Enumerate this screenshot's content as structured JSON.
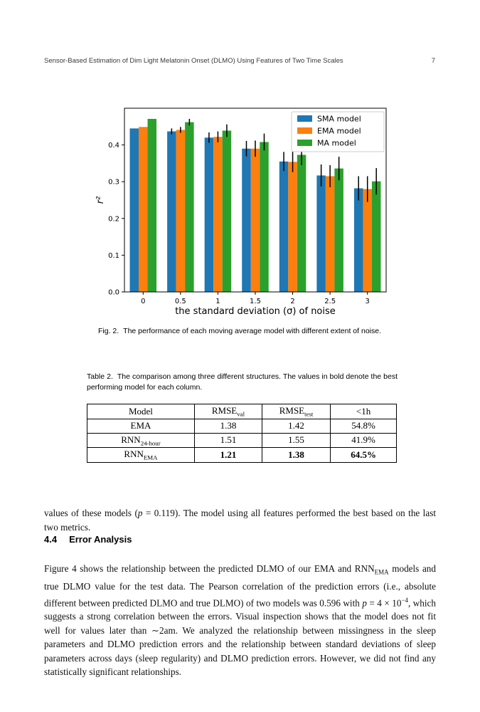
{
  "page": {
    "header_title": "Sensor-Based Estimation of Dim Light Melatonin Onset (DLMO) Using Features of Two Time Scales",
    "page_number": "7"
  },
  "chart_data": {
    "type": "bar",
    "title": "",
    "xlabel": "the standard deviation (σ) of noise",
    "ylabel": "r²",
    "categories": [
      "0",
      "0.5",
      "1",
      "1.5",
      "2",
      "2.5",
      "3"
    ],
    "series": [
      {
        "name": "SMA model",
        "color": "#1f77b4",
        "values": [
          0.445,
          0.437,
          0.42,
          0.39,
          0.355,
          0.317,
          0.282
        ],
        "errors": [
          0,
          0.008,
          0.014,
          0.021,
          0.026,
          0.03,
          0.033
        ]
      },
      {
        "name": "EMA model",
        "color": "#ff7f0e",
        "values": [
          0.449,
          0.441,
          0.422,
          0.39,
          0.354,
          0.315,
          0.28
        ],
        "errors": [
          0,
          0.008,
          0.015,
          0.022,
          0.028,
          0.03,
          0.035
        ]
      },
      {
        "name": "MA model",
        "color": "#2ca02c",
        "values": [
          0.471,
          0.462,
          0.439,
          0.408,
          0.373,
          0.336,
          0.301
        ],
        "errors": [
          0,
          0.009,
          0.017,
          0.023,
          0.028,
          0.032,
          0.036
        ]
      }
    ],
    "ylim": [
      0,
      0.5
    ],
    "yticks": [
      0.0,
      0.1,
      0.2,
      0.3,
      0.4
    ],
    "legend_position": "upper right",
    "grid": false,
    "error_bar_color": "#000000"
  },
  "figure": {
    "caption_label": "Fig. 2.",
    "caption_text": "The performance of each moving average model with different extent of noise."
  },
  "table": {
    "caption_label": "Table 2.",
    "caption_text": "The comparison among three different structures. The values in bold denote the best performing model for each column.",
    "headers": [
      {
        "main": "Model"
      },
      {
        "main": "RMSE",
        "sub": "val"
      },
      {
        "main": "RMSE",
        "sub": "test"
      },
      {
        "main": "<1h"
      }
    ],
    "rows": [
      {
        "cells": [
          {
            "main": "EMA"
          },
          {
            "main": "1.38"
          },
          {
            "main": "1.42"
          },
          {
            "main": "54.8%"
          }
        ]
      },
      {
        "cells": [
          {
            "main": "RNN",
            "sub": "24-hour"
          },
          {
            "main": "1.51"
          },
          {
            "main": "1.55"
          },
          {
            "main": "41.9%"
          }
        ]
      },
      {
        "cells": [
          {
            "main": "RNN",
            "sub": "EMA"
          },
          {
            "main": "1.21"
          },
          {
            "main": "1.38"
          },
          {
            "main": "64.5%"
          }
        ]
      }
    ]
  },
  "body": {
    "p1": [
      {
        "t": "values of these models ("
      },
      {
        "t": "p",
        "style": "i"
      },
      {
        "t": " = 0.119). The model using all features performed the best based on the last two metrics."
      }
    ],
    "heading": {
      "number": "4.4",
      "title": "Error Analysis"
    },
    "p2": [
      {
        "t": "Figure 4 shows the relationship between the predicted DLMO of our EMA and RNN"
      },
      {
        "t": "EMA",
        "style": "sub"
      },
      {
        "t": " models and true DLMO value for the test data. The Pearson correlation of the prediction errors (i.e., absolute different between predicted DLMO and true DLMO) of two models was 0.596 with "
      },
      {
        "t": "p",
        "style": "i"
      },
      {
        "t": " = 4 × 10"
      },
      {
        "t": "−4",
        "style": "sup"
      },
      {
        "t": ", which suggests a strong correlation between the errors. Visual inspection shows that the model does not fit well for values later than ∼2am. We analyzed the relationship between missingness in the sleep parameters and DLMO prediction errors and the relationship between standard deviations of sleep parameters across days (sleep regularity) and DLMO prediction errors. However, we did not find any statistically significant relationships."
      }
    ]
  }
}
